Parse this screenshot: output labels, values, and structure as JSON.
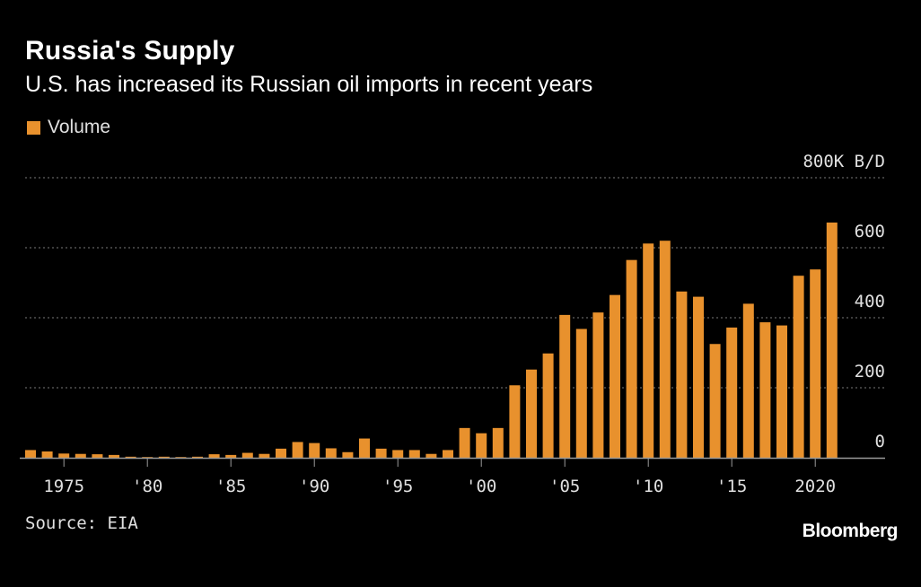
{
  "title": "Russia's Supply",
  "subtitle": "U.S. has increased its Russian oil imports in recent years",
  "legend": {
    "label": "Volume"
  },
  "source": "Source: EIA",
  "brand": "Bloomberg",
  "colors": {
    "background": "#000000",
    "bar": "#e8912d",
    "grid": "#7a7a7a",
    "text": "#e0e0e0"
  },
  "chart_data": {
    "type": "bar",
    "unit": "800K B/D",
    "ylim": [
      0,
      800
    ],
    "y_ticks": [
      0,
      200,
      400,
      600
    ],
    "x_ticks": [
      {
        "year": 1975,
        "label": "1975"
      },
      {
        "year": 1980,
        "label": "'80"
      },
      {
        "year": 1985,
        "label": "'85"
      },
      {
        "year": 1990,
        "label": "'90"
      },
      {
        "year": 1995,
        "label": "'95"
      },
      {
        "year": 2000,
        "label": "'00"
      },
      {
        "year": 2005,
        "label": "'05"
      },
      {
        "year": 2010,
        "label": "'10"
      },
      {
        "year": 2015,
        "label": "'15"
      },
      {
        "year": 2020,
        "label": "2020"
      }
    ],
    "grid": true,
    "series": [
      {
        "name": "Volume",
        "x": [
          1973,
          1974,
          1975,
          1976,
          1977,
          1978,
          1979,
          1980,
          1981,
          1982,
          1983,
          1984,
          1985,
          1986,
          1987,
          1988,
          1989,
          1990,
          1991,
          1992,
          1993,
          1994,
          1995,
          1996,
          1997,
          1998,
          1999,
          2000,
          2001,
          2002,
          2003,
          2004,
          2005,
          2006,
          2007,
          2008,
          2009,
          2010,
          2011,
          2012,
          2013,
          2014,
          2015,
          2016,
          2017,
          2018,
          2019,
          2020,
          2021
        ],
        "values": [
          22,
          18,
          12,
          11,
          10,
          8,
          3,
          2,
          3,
          2,
          3,
          10,
          8,
          14,
          11,
          26,
          45,
          42,
          27,
          16,
          55,
          26,
          22,
          22,
          11,
          22,
          85,
          70,
          85,
          207,
          252,
          298,
          408,
          368,
          415,
          465,
          565,
          612,
          620,
          475,
          460,
          325,
          372,
          440,
          387,
          378,
          520,
          538,
          672
        ]
      }
    ]
  }
}
